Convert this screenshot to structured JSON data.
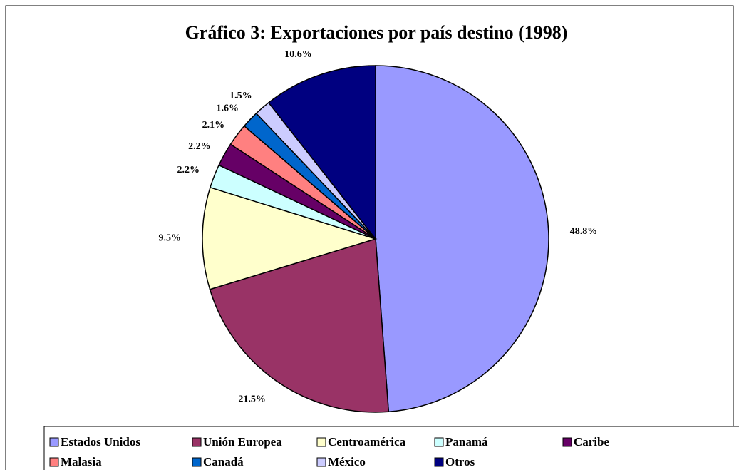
{
  "chart_data": {
    "type": "pie",
    "title": "Gráfico 3: Exportaciones por país destino (1998)",
    "categories": [
      "Estados Unidos",
      "Unión Europea",
      "Centroamérica",
      "Panamá",
      "Caribe",
      "Malasia",
      "Canadá",
      "México",
      "Otros"
    ],
    "values": [
      48.8,
      21.5,
      9.5,
      2.2,
      2.2,
      2.1,
      1.6,
      1.5,
      10.6
    ],
    "value_labels": [
      "48.8%",
      "21.5%",
      "9.5%",
      "2.2%",
      "2.2%",
      "2.1%",
      "1.6%",
      "1.5%",
      "10.6%"
    ],
    "colors": [
      "#9999ff",
      "#993366",
      "#ffffcc",
      "#ccffff",
      "#660066",
      "#ff8080",
      "#0066cc",
      "#ccccff",
      "#000080"
    ],
    "legend": "bottom"
  }
}
